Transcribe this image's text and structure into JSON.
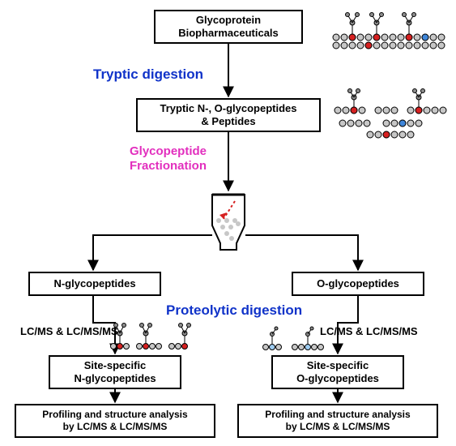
{
  "boxes": {
    "b1": "Glycoprotein\nBiopharmaceuticals",
    "b2": "Tryptic N-, O-glycopeptides\n& Peptides",
    "b3": "N-glycopeptides",
    "b4": "O-glycopeptides",
    "b5": "Site-specific\nN-glycopeptides",
    "b6": "Site-specific\nO-glycopeptides",
    "b7": "Profiling and structure analysis\nby LC/MS & LC/MS/MS",
    "b8": "Profiling and structure analysis\nby LC/MS & LC/MS/MS"
  },
  "labels": {
    "l1": {
      "text": "Tryptic digestion",
      "color": "#1033c9",
      "fontsize": 17
    },
    "l2": {
      "text": "Glycopeptide",
      "color": "#e22fbe",
      "fontsize": 15
    },
    "l3": {
      "text": "Fractionation",
      "color": "#e22fbe",
      "fontsize": 15
    },
    "l4": {
      "text": "Proteolytic digestion",
      "color": "#1033c9",
      "fontsize": 17
    },
    "l5": {
      "text": "LC/MS & LC/MS/MS",
      "color": "#000000",
      "fontsize": 13
    },
    "l6": {
      "text": "LC/MS & LC/MS/MS",
      "color": "#000000",
      "fontsize": 13
    }
  },
  "style": {
    "arrow_color": "#000000",
    "arrow_width": 2,
    "box_border": "#000000",
    "background": "#ffffff"
  },
  "glycan_colors": {
    "grey": "#c7c7c7",
    "dgrey": "#8d8d8d",
    "red": "#d62121",
    "blue": "#3f86d9",
    "lblue": "#9ecdf2"
  },
  "flow": {
    "type": "flowchart",
    "edges": [
      [
        "b1",
        "b2"
      ],
      [
        "b2",
        "column"
      ],
      [
        "column",
        "b3"
      ],
      [
        "column",
        "b4"
      ],
      [
        "b3",
        "b5"
      ],
      [
        "b4",
        "b6"
      ],
      [
        "b5",
        "b7"
      ],
      [
        "b6",
        "b8"
      ]
    ]
  }
}
